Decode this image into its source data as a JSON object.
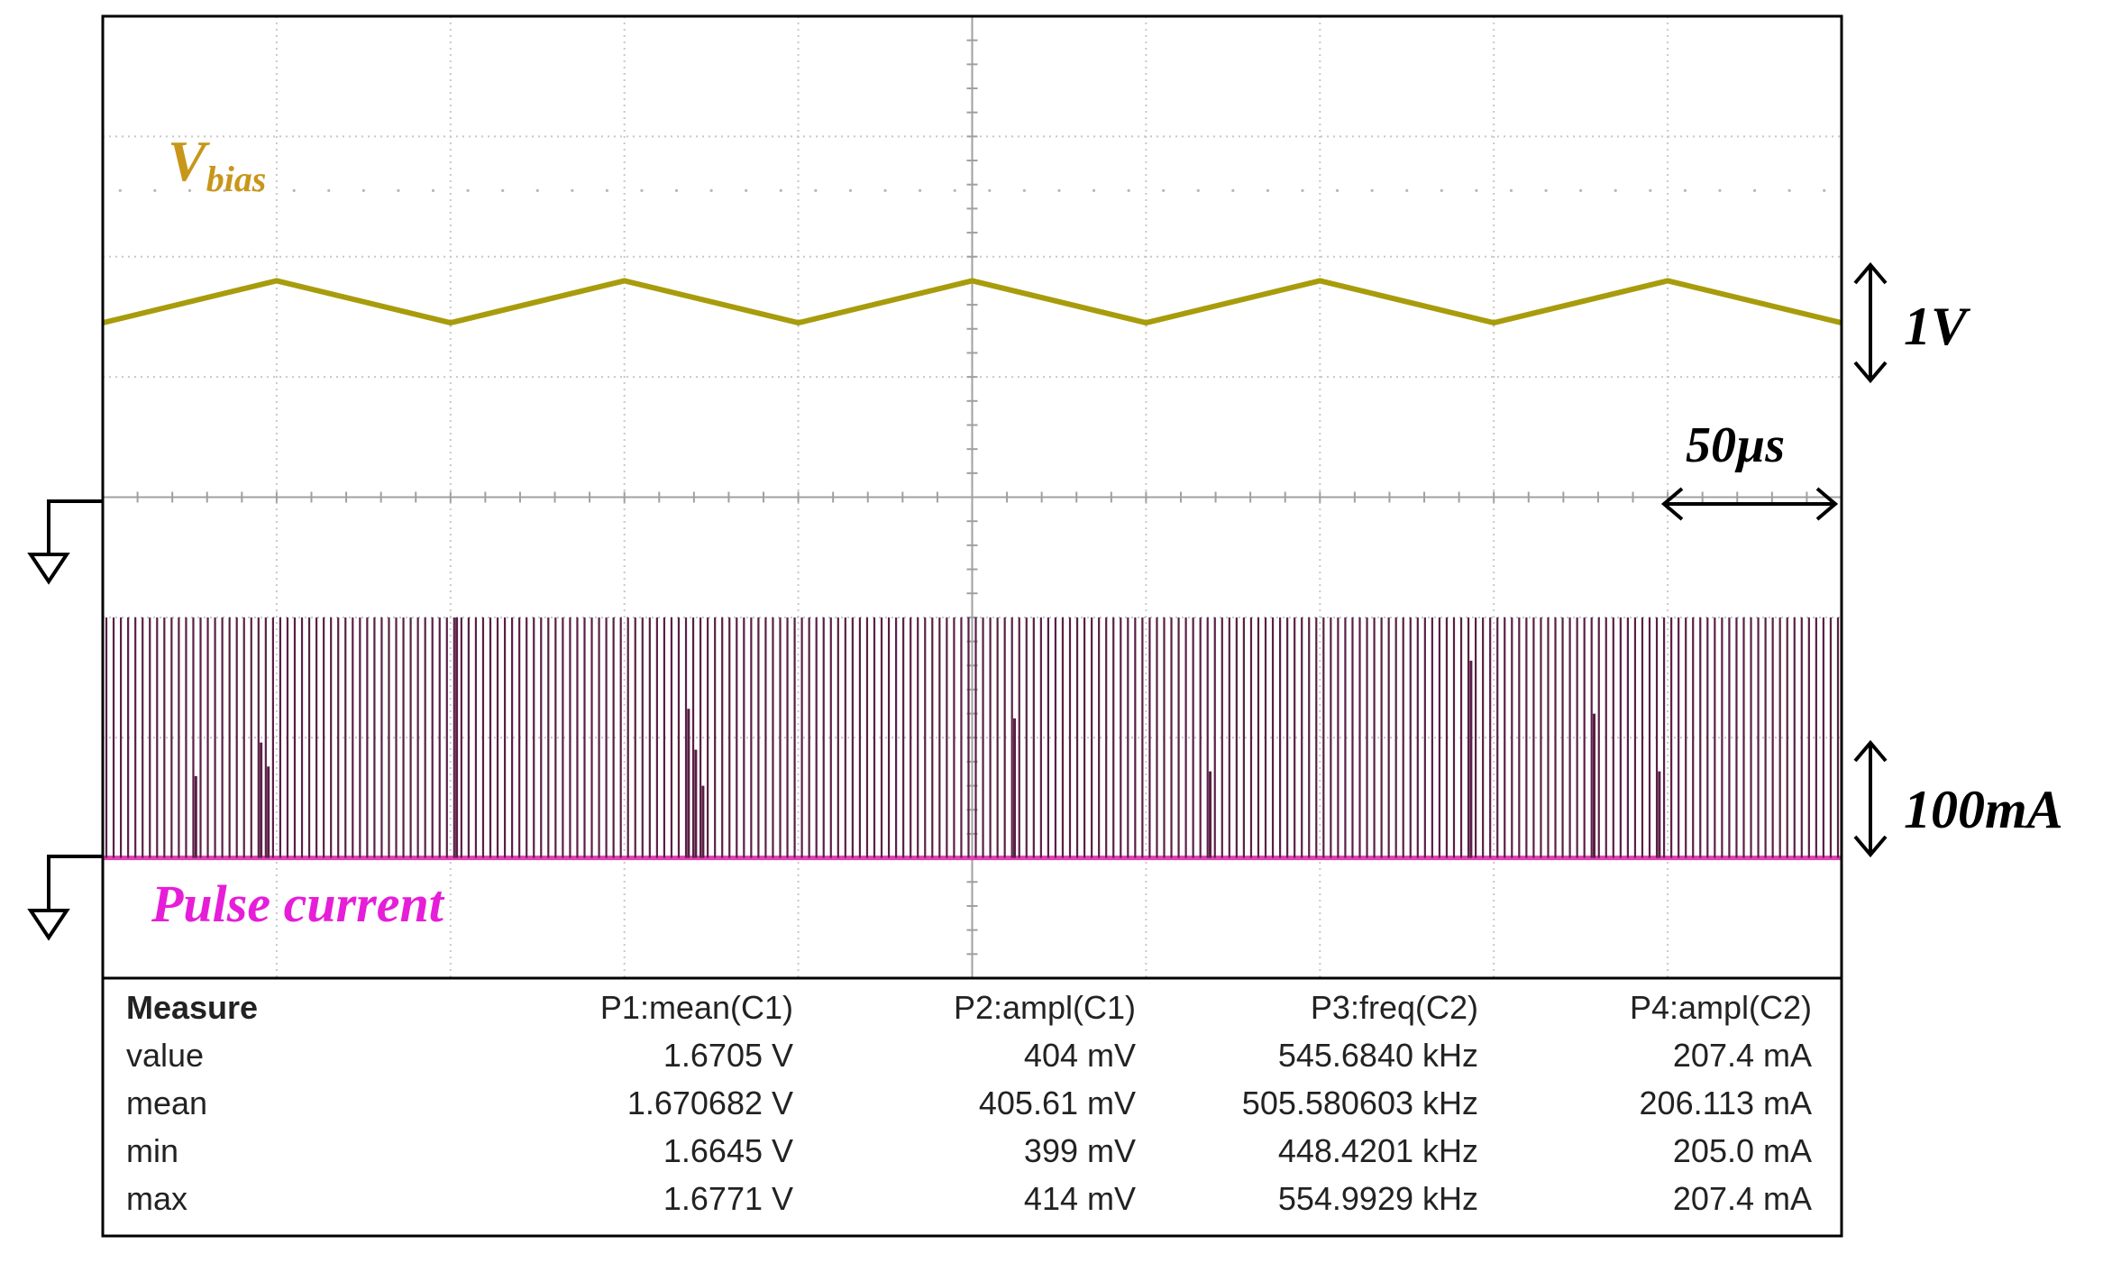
{
  "colors": {
    "trace1": "#a89c0c",
    "trace2_pulses": "#5a1f45",
    "trace2_baseline": "#e040b0",
    "label_vbias": "#c8961a",
    "label_pulse": "#e61ed8",
    "grid": "#c8c8c8",
    "frame": "#000000"
  },
  "chart_data": {
    "type": "line",
    "title": "",
    "grid": true,
    "x_divisions": 10,
    "y_divisions": 8,
    "timebase_label": "50µs",
    "series": [
      {
        "name": "Vbias",
        "channel": "C1",
        "waveform": "triangle",
        "scale_label": "1V",
        "mean_V": 1.6705,
        "ampl_mV": 404,
        "period_divisions": 2.0,
        "peaks_at_div": [
          1.0,
          3.0,
          5.0,
          7.0,
          9.0
        ],
        "troughs_at_div": [
          2.0,
          4.0,
          6.0,
          8.0
        ],
        "level_div_above_center": {
          "min": 1.45,
          "max": 1.8
        }
      },
      {
        "name": "Pulse current",
        "channel": "C2",
        "waveform": "pulse_train",
        "scale_label": "100mA",
        "freq_kHz": 545.684,
        "ampl_mA": 207.4,
        "pulse_count_visible": 240,
        "pulse_height_div": 2.0,
        "baseline_div_below_center": 3.0
      }
    ]
  },
  "labels": {
    "vbias_main": "V",
    "vbias_sub": "bias",
    "pulse_current": "Pulse current",
    "scale_1v": "1V",
    "scale_100ma": "100mA",
    "timebase": "50µs"
  },
  "measure": {
    "header": [
      "Measure",
      "P1:mean(C1)",
      "P2:ampl(C1)",
      "P3:freq(C2)",
      "P4:ampl(C2)"
    ],
    "rows": [
      {
        "label": "value",
        "cells": [
          "1.6705 V",
          "404 mV",
          "545.6840 kHz",
          "207.4 mA"
        ]
      },
      {
        "label": "mean",
        "cells": [
          "1.670682 V",
          "405.61 mV",
          "505.580603 kHz",
          "206.113 mA"
        ]
      },
      {
        "label": "min",
        "cells": [
          "1.6645 V",
          "399 mV",
          "448.4201 kHz",
          "205.0 mA"
        ]
      },
      {
        "label": "max",
        "cells": [
          "1.6771 V",
          "414 mV",
          "554.9929 kHz",
          "207.4 mA"
        ]
      }
    ]
  }
}
